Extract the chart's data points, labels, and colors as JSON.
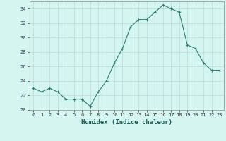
{
  "x": [
    0,
    1,
    2,
    3,
    4,
    5,
    6,
    7,
    8,
    9,
    10,
    11,
    12,
    13,
    14,
    15,
    16,
    17,
    18,
    19,
    20,
    21,
    22,
    23
  ],
  "y": [
    23.0,
    22.5,
    23.0,
    22.5,
    21.5,
    21.5,
    21.5,
    20.5,
    22.5,
    24.0,
    26.5,
    28.5,
    31.5,
    32.5,
    32.5,
    33.5,
    34.5,
    34.0,
    33.5,
    29.0,
    28.5,
    26.5,
    25.5,
    25.5
  ],
  "xlabel": "Humidex (Indice chaleur)",
  "ylim": [
    20,
    35
  ],
  "yticks": [
    20,
    22,
    24,
    26,
    28,
    30,
    32,
    34
  ],
  "xticks": [
    0,
    1,
    2,
    3,
    4,
    5,
    6,
    7,
    8,
    9,
    10,
    11,
    12,
    13,
    14,
    15,
    16,
    17,
    18,
    19,
    20,
    21,
    22,
    23
  ],
  "line_color": "#2e7d6e",
  "marker": "+",
  "marker_size": 3,
  "marker_lw": 0.8,
  "line_width": 0.8,
  "bg_color": "#d4f5f0",
  "grid_color": "#b8dcd8",
  "fig_bg": "#d4f5f0",
  "tick_fontsize": 5,
  "xlabel_fontsize": 6.5
}
